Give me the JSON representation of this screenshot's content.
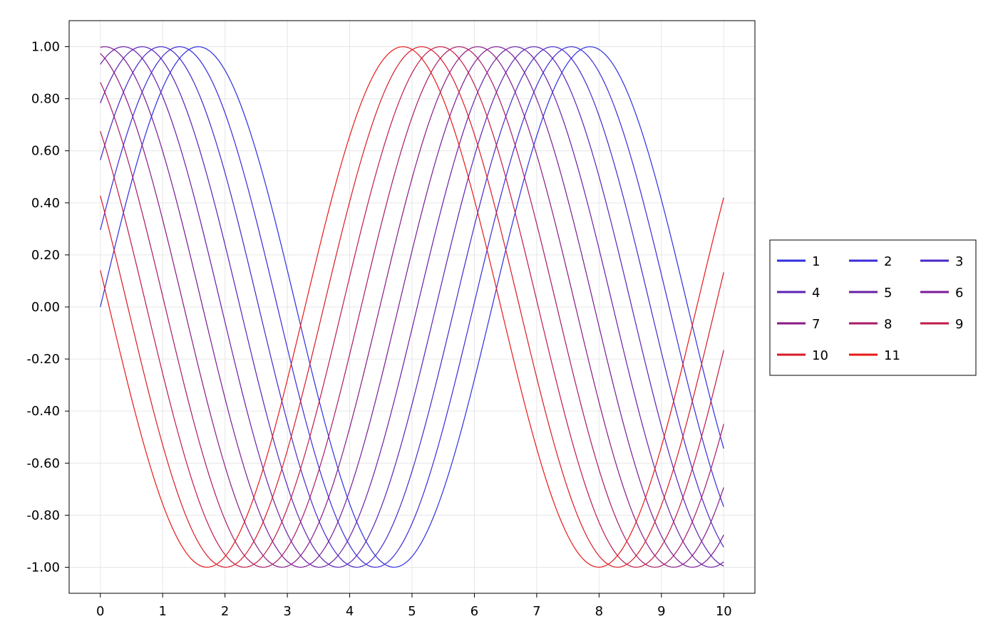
{
  "chart_data": {
    "type": "line",
    "title": "",
    "xlabel": "",
    "ylabel": "",
    "xlim": [
      -0.5,
      10.5
    ],
    "ylim": [
      -1.1,
      1.1
    ],
    "xticks": [
      0,
      1,
      2,
      3,
      4,
      5,
      6,
      7,
      8,
      9,
      10
    ],
    "xtick_labels": [
      "0",
      "1",
      "2",
      "3",
      "4",
      "5",
      "6",
      "7",
      "8",
      "9",
      "10"
    ],
    "yticks": [
      1.0,
      0.8,
      0.6,
      0.4,
      0.2,
      0.0,
      -0.2,
      -0.4,
      -0.6,
      -0.8,
      -1.0
    ],
    "ytick_labels": [
      "1.00",
      "0.80",
      "0.60",
      "0.40",
      "0.20",
      "0.00",
      "-0.20",
      "-0.40",
      "-0.60",
      "-0.80",
      "-1.00"
    ],
    "grid": true,
    "legend_position": "right",
    "legend_columns": 3,
    "function": "y = sin(x + phase)",
    "x_range": [
      0,
      10
    ],
    "series": [
      {
        "name": "1",
        "phase": 0.0,
        "color": "#2f2fe0"
      },
      {
        "name": "2",
        "phase": 0.3,
        "color": "#3a2bd8"
      },
      {
        "name": "3",
        "phase": 0.6,
        "color": "#4827c8"
      },
      {
        "name": "4",
        "phase": 0.9,
        "color": "#5a22b5"
      },
      {
        "name": "5",
        "phase": 1.2,
        "color": "#6a1ea6"
      },
      {
        "name": "6",
        "phase": 1.5,
        "color": "#7a1b96"
      },
      {
        "name": "7",
        "phase": 1.8,
        "color": "#8a1a86"
      },
      {
        "name": "8",
        "phase": 2.1,
        "color": "#a81a66"
      },
      {
        "name": "9",
        "phase": 2.4,
        "color": "#c01a48"
      },
      {
        "name": "10",
        "phase": 2.7,
        "color": "#d81a28"
      },
      {
        "name": "11",
        "phase": 3.0,
        "color": "#e81818"
      }
    ]
  }
}
